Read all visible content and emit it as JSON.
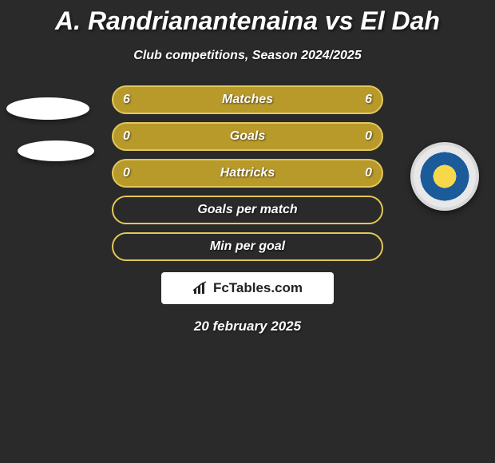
{
  "title": "A. Randrianantenaina vs El Dah",
  "subtitle": "Club competitions, Season 2024/2025",
  "date": "20 february 2025",
  "brand": "FcTables.com",
  "colors": {
    "background": "#2a2a2a",
    "row_fill": "#b89a2b",
    "row_border": "#e2c75a",
    "text": "#ffffff"
  },
  "rows": [
    {
      "label": "Matches",
      "left": "6",
      "right": "6",
      "filled": true
    },
    {
      "label": "Goals",
      "left": "0",
      "right": "0",
      "filled": true
    },
    {
      "label": "Hattricks",
      "left": "0",
      "right": "0",
      "filled": true
    },
    {
      "label": "Goals per match",
      "left": "",
      "right": "",
      "filled": false
    },
    {
      "label": "Min per goal",
      "left": "",
      "right": "",
      "filled": false
    }
  ]
}
